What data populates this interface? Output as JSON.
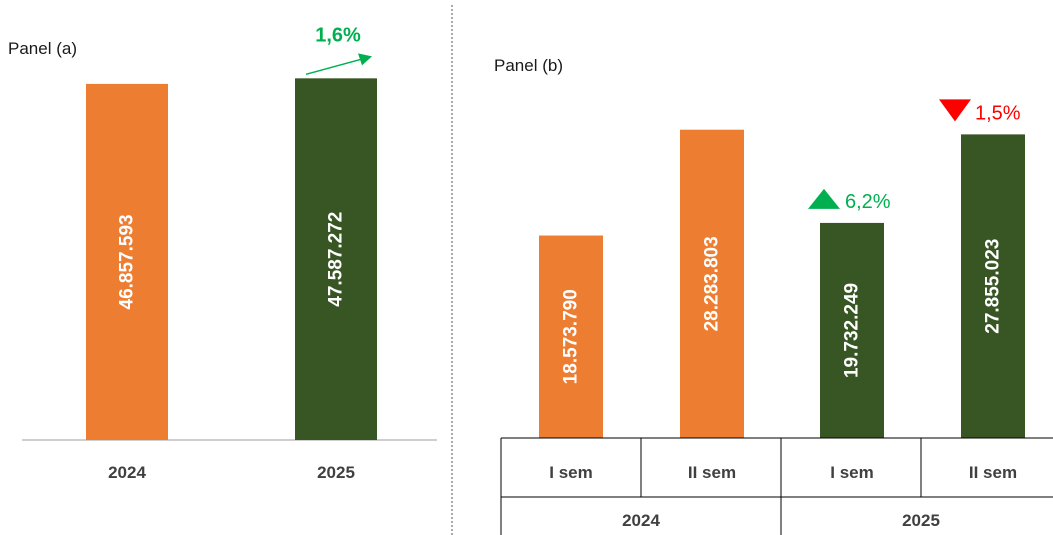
{
  "colors": {
    "orange": "#ed7d31",
    "green": "#375623",
    "up": "#00b050",
    "down": "#ff0000",
    "axis": "#bfbfbf",
    "frame": "#000000"
  },
  "chart_data": [
    {
      "type": "bar",
      "title": "Panel (a)",
      "categories": [
        "2024",
        "2025"
      ],
      "values": [
        46857593,
        47587272
      ],
      "value_labels": [
        "46.857.593",
        "47.587.272"
      ],
      "bar_colors": [
        "orange",
        "green"
      ],
      "annotation": {
        "text": "1,6%",
        "direction": "up"
      },
      "ylim": [
        0,
        50000000
      ]
    },
    {
      "type": "bar",
      "title": "Panel (b)",
      "categories": [
        "I sem",
        "II sem",
        "I sem",
        "II sem"
      ],
      "groups": [
        {
          "label": "2024",
          "span": 2
        },
        {
          "label": "2025",
          "span": 2
        }
      ],
      "values": [
        18573790,
        28283803,
        19732249,
        27855023
      ],
      "value_labels": [
        "18.573.790",
        "28.283.803",
        "19.732.249",
        "27.855.023"
      ],
      "bar_colors": [
        "orange",
        "orange",
        "green",
        "green"
      ],
      "annotations": [
        {
          "bar_index": 2,
          "text": "6,2%",
          "direction": "up"
        },
        {
          "bar_index": 3,
          "text": "1,5%",
          "direction": "down"
        }
      ],
      "ylim": [
        0,
        30000000
      ]
    }
  ]
}
